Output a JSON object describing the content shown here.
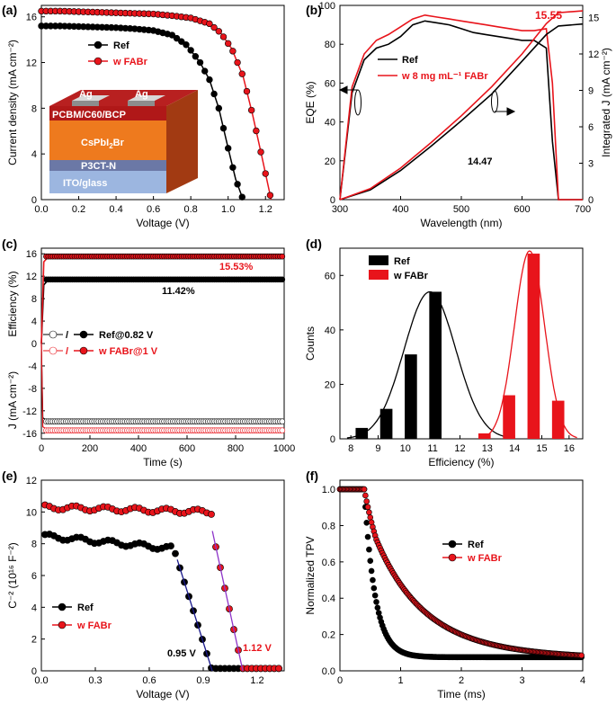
{
  "figure": {
    "panels": {
      "a": {
        "label": "(a)"
      },
      "b": {
        "label": "(b)"
      },
      "c": {
        "label": "(c)"
      },
      "d": {
        "label": "(d)"
      },
      "e": {
        "label": "(e)"
      },
      "f": {
        "label": "(f)"
      }
    },
    "annotations": {
      "a_layers": [
        "Ag",
        "Ag",
        "PCBM/C60/BCP",
        "CsPbI",
        "2",
        "Br",
        "P3CT-N",
        "ITO/glass"
      ],
      "b_values": [
        "15.55",
        "14.47"
      ],
      "c_values": [
        "15.53%",
        "11.42%"
      ],
      "e_values": [
        "0.95 V",
        "1.12 V"
      ]
    },
    "colors": {
      "ref": "#000000",
      "fabr": "#e8141b"
    }
  },
  "chart_data": [
    {
      "panel": "a",
      "type": "line",
      "xlabel": "Voltage (V)",
      "ylabel": "Current density (mA cm⁻²)",
      "xlim": [
        0,
        1.3
      ],
      "ylim": [
        0,
        17
      ],
      "xticks": [
        "0.0",
        "0.2",
        "0.4",
        "0.6",
        "0.8",
        "1.0",
        "1.2"
      ],
      "yticks": [
        "0",
        "4",
        "8",
        "12",
        "16"
      ],
      "series": [
        {
          "name": "Ref",
          "color": "#000000",
          "x": [
            0,
            0.1,
            0.2,
            0.3,
            0.4,
            0.5,
            0.6,
            0.7,
            0.78,
            0.85,
            0.9,
            0.95,
            1.0,
            1.04,
            1.08
          ],
          "y": [
            15.2,
            15.2,
            15.15,
            15.1,
            15.05,
            14.95,
            14.8,
            14.4,
            13.5,
            12.0,
            10.5,
            8.0,
            4.5,
            1.8,
            0
          ]
        },
        {
          "name": "w FABr",
          "color": "#e8141b",
          "x": [
            0,
            0.1,
            0.2,
            0.3,
            0.4,
            0.5,
            0.6,
            0.7,
            0.8,
            0.9,
            0.96,
            1.02,
            1.08,
            1.13,
            1.18,
            1.23
          ],
          "y": [
            16.5,
            16.5,
            16.45,
            16.4,
            16.35,
            16.3,
            16.25,
            16.1,
            15.9,
            15.4,
            14.6,
            13.2,
            10.8,
            7.5,
            3.8,
            0
          ]
        }
      ]
    },
    {
      "panel": "b",
      "type": "line",
      "xlabel": "Wavelength (nm)",
      "ylabel": "EQE (%)",
      "y2label": "Integrated J (mA cm⁻²)",
      "xlim": [
        300,
        700
      ],
      "ylim": [
        0,
        100
      ],
      "y2lim": [
        0,
        16
      ],
      "xticks": [
        "300",
        "400",
        "500",
        "600",
        "700"
      ],
      "yticks": [
        "0",
        "20",
        "40",
        "60",
        "80",
        "100"
      ],
      "y2ticks": [
        "0",
        "3",
        "6",
        "9",
        "12",
        "15"
      ],
      "series": [
        {
          "name": "Ref",
          "color": "#000000",
          "axis": "left",
          "x": [
            300,
            320,
            340,
            360,
            380,
            400,
            420,
            440,
            460,
            480,
            500,
            520,
            540,
            560,
            580,
            600,
            620,
            640,
            650,
            660,
            680,
            700
          ],
          "y": [
            0,
            55,
            72,
            78,
            80,
            84,
            90,
            92,
            91,
            90,
            88,
            86,
            85,
            84,
            83,
            82,
            82,
            78,
            30,
            0,
            0,
            0
          ]
        },
        {
          "name": "w 8 mg mL⁻¹ FABr",
          "color": "#e8141b",
          "axis": "left",
          "x": [
            300,
            320,
            340,
            360,
            380,
            400,
            420,
            440,
            460,
            480,
            500,
            520,
            540,
            560,
            580,
            600,
            620,
            640,
            650,
            660,
            680,
            700
          ],
          "y": [
            0,
            58,
            75,
            82,
            85,
            89,
            93,
            95,
            94,
            93,
            92,
            91,
            90,
            89,
            88,
            87,
            87,
            88,
            60,
            0,
            0,
            0
          ]
        },
        {
          "name": "Ref integrated J",
          "color": "#000000",
          "axis": "right",
          "x": [
            300,
            350,
            400,
            450,
            500,
            550,
            600,
            640,
            660,
            700
          ],
          "y": [
            0,
            0.8,
            2.4,
            4.4,
            6.5,
            8.7,
            11.4,
            13.6,
            14.3,
            14.47
          ]
        },
        {
          "name": "w FABr integrated J",
          "color": "#e8141b",
          "axis": "right",
          "x": [
            300,
            350,
            400,
            450,
            500,
            550,
            600,
            640,
            660,
            700
          ],
          "y": [
            0,
            0.9,
            2.6,
            4.7,
            6.9,
            9.3,
            12.0,
            14.5,
            15.4,
            15.55
          ]
        }
      ]
    },
    {
      "panel": "c",
      "type": "line",
      "xlabel": "Time (s)",
      "ylabel_top": "Efficiency (%)",
      "ylabel_bottom": "J (mA cm⁻²)",
      "xlim": [
        0,
        1000
      ],
      "ylim": [
        -17,
        17
      ],
      "xticks": [
        "0",
        "200",
        "400",
        "600",
        "800",
        "1000"
      ],
      "yticks": [
        "-16",
        "-12",
        "-8",
        "-4",
        "0",
        "4",
        "8",
        "12",
        "16"
      ],
      "series": [
        {
          "name": "Ref@0.82 V",
          "color": "#000000",
          "efficiency": 11.42,
          "current": -13.9
        },
        {
          "name": "w FABr@1 V",
          "color": "#e8141b",
          "efficiency": 15.53,
          "current": -15.5
        }
      ],
      "legend_sep": "/"
    },
    {
      "panel": "d",
      "type": "bar",
      "xlabel": "Efficiency (%)",
      "ylabel": "Counts",
      "xlim": [
        7.6,
        16.5
      ],
      "ylim": [
        0,
        70
      ],
      "xticks": [
        "8",
        "9",
        "10",
        "11",
        "12",
        "13",
        "14",
        "15",
        "16"
      ],
      "yticks": [
        "0",
        "20",
        "40",
        "60"
      ],
      "series": [
        {
          "name": "Ref",
          "color": "#000000",
          "x": [
            8.4,
            9.3,
            10.2,
            11.1
          ],
          "values": [
            4,
            11,
            31,
            54
          ]
        },
        {
          "name": "w FABr",
          "color": "#e8141b",
          "x": [
            12.9,
            13.8,
            14.7,
            15.6
          ],
          "values": [
            2,
            16,
            68,
            14
          ]
        }
      ]
    },
    {
      "panel": "e",
      "type": "scatter",
      "xlabel": "Voltage (V)",
      "ylabel": "C⁻² (10¹⁶ F⁻²)",
      "xlim": [
        0,
        1.35
      ],
      "ylim": [
        0,
        12
      ],
      "xticks": [
        "0.0",
        "0.3",
        "0.6",
        "0.9",
        "1.2"
      ],
      "yticks": [
        "0",
        "2",
        "4",
        "6",
        "8",
        "10",
        "12"
      ],
      "series": [
        {
          "name": "Ref",
          "color": "#000000",
          "x0": 0.95,
          "plateau": 8.5
        },
        {
          "name": "w FABr",
          "color": "#e8141b",
          "x0": 1.12,
          "plateau": 10.3
        }
      ]
    },
    {
      "panel": "f",
      "type": "line",
      "xlabel": "Time (ms)",
      "ylabel": "Normalized TPV",
      "xlim": [
        0,
        4
      ],
      "ylim": [
        0,
        1.05
      ],
      "xticks": [
        "0",
        "1",
        "2",
        "3",
        "4"
      ],
      "yticks": [
        "0.0",
        "0.2",
        "0.4",
        "0.6",
        "0.8",
        "1.0"
      ],
      "series": [
        {
          "name": "Ref",
          "color": "#000000",
          "tau": 0.18,
          "tail": 0.075
        },
        {
          "name": "w FABr",
          "color": "#e8141b",
          "tau": 0.75,
          "tail": 0.06
        }
      ]
    }
  ]
}
